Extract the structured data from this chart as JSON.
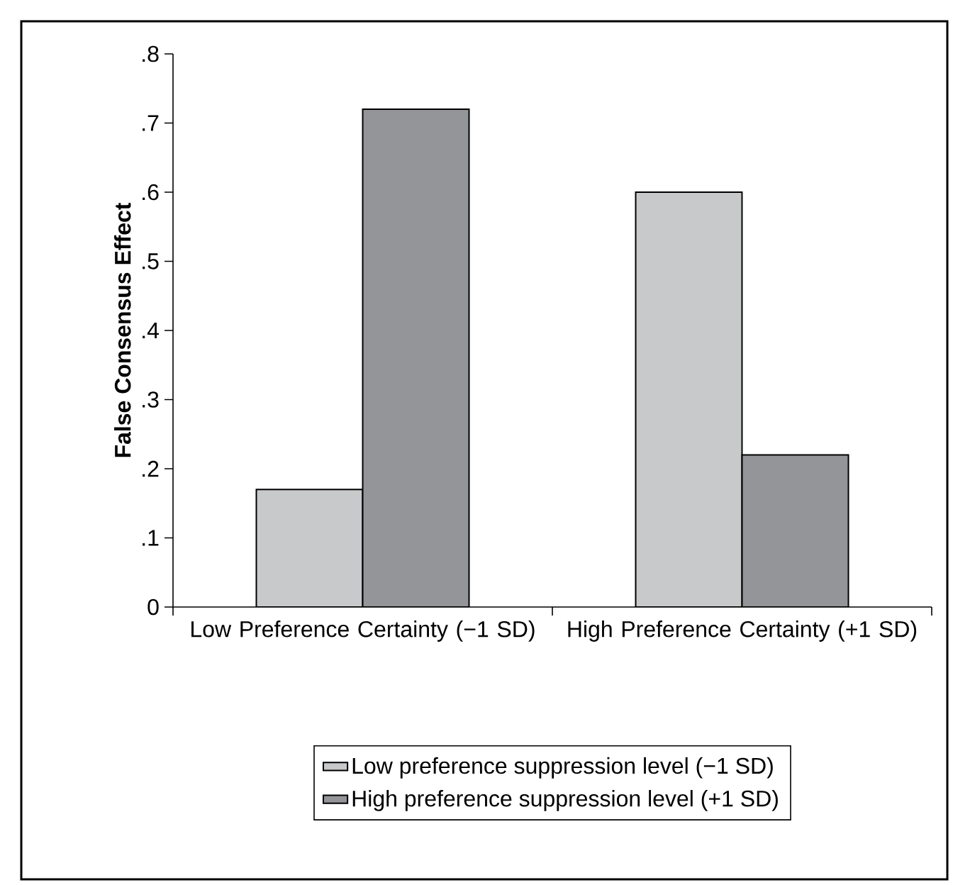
{
  "chart_data": {
    "type": "bar",
    "ylabel": "False Consensus Effect",
    "categories": [
      "Low Preference Certainty (−1 SD)",
      "High Preference Certainty (+1 SD)"
    ],
    "series": [
      {
        "name": "Low preference suppression level (−1 SD)",
        "color": "#c8c9cb",
        "values": [
          0.17,
          0.6
        ]
      },
      {
        "name": "High preference suppression level (+1 SD)",
        "color": "#939598",
        "values": [
          0.72,
          0.22
        ]
      }
    ],
    "ylim": [
      0,
      0.8
    ],
    "yticks": [
      0,
      {
        "value": 0.1,
        "label": ".1"
      },
      {
        "value": 0.2,
        "label": ".2"
      },
      {
        "value": 0.3,
        "label": ".3"
      },
      {
        "value": 0.4,
        "label": ".4"
      },
      {
        "value": 0.5,
        "label": ".5"
      },
      {
        "value": 0.6,
        "label": ".6"
      },
      {
        "value": 0.7,
        "label": ".7"
      },
      {
        "value": 0.8,
        "label": ".8"
      }
    ],
    "legend": "bottom",
    "grid": false
  }
}
